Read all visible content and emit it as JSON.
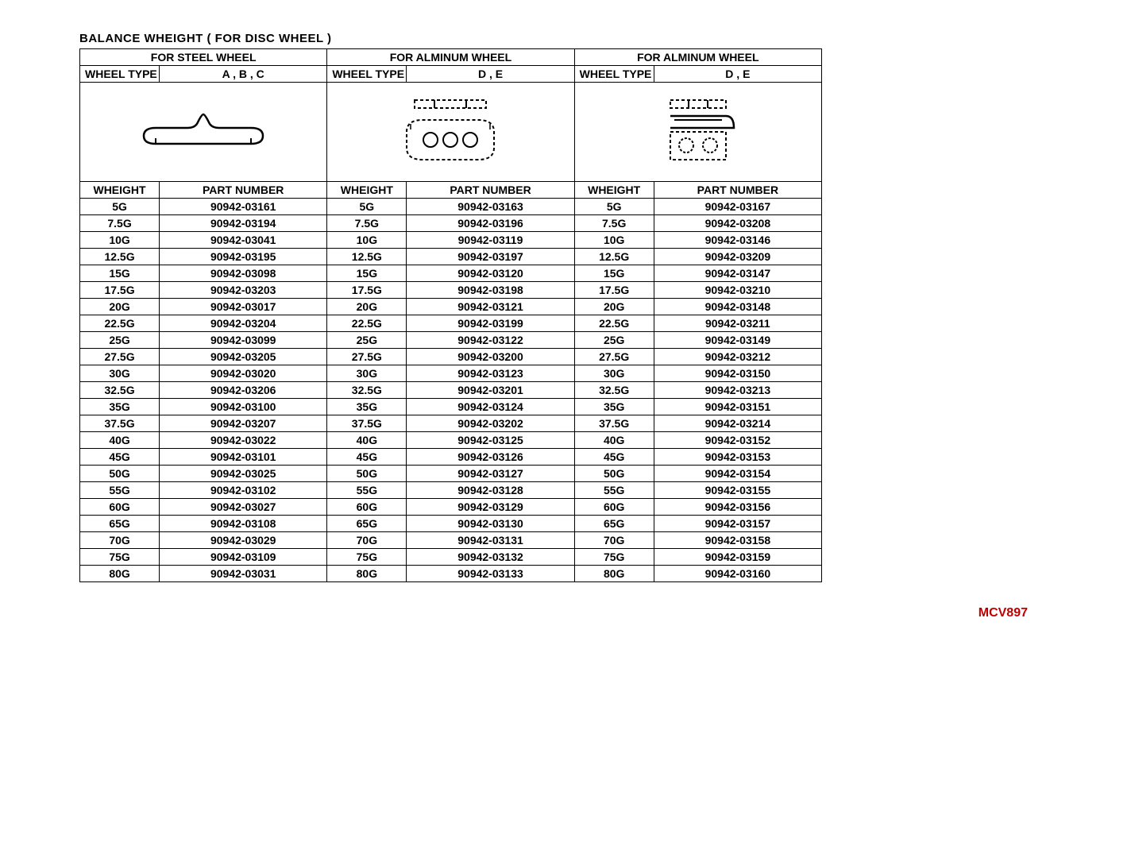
{
  "title": "BALANCE  WHEIGHT ( FOR  DISC  WHEEL )",
  "page_code": "MCV897",
  "groups": [
    {
      "title": "FOR STEEL WHEEL",
      "wheel_type_label": "WHEEL TYPE",
      "wheel_type_value": "A , B , C",
      "diagram": "steel"
    },
    {
      "title": "FOR ALMINUM WHEEL",
      "wheel_type_label": "WHEEL TYPE",
      "wheel_type_value": "D , E",
      "diagram": "alum1"
    },
    {
      "title": "FOR ALMINUM WHEEL",
      "wheel_type_label": "WHEEL TYPE",
      "wheel_type_value": "D , E",
      "diagram": "alum2"
    }
  ],
  "col_headers": {
    "weight": "WHEIGHT",
    "part": "PART  NUMBER"
  },
  "rows": [
    {
      "w": [
        "5G",
        "5G",
        "5G"
      ],
      "p": [
        "90942-03161",
        "90942-03163",
        "90942-03167"
      ]
    },
    {
      "w": [
        "7.5G",
        "7.5G",
        "7.5G"
      ],
      "p": [
        "90942-03194",
        "90942-03196",
        "90942-03208"
      ]
    },
    {
      "w": [
        "10G",
        "10G",
        "10G"
      ],
      "p": [
        "90942-03041",
        "90942-03119",
        "90942-03146"
      ]
    },
    {
      "w": [
        "12.5G",
        "12.5G",
        "12.5G"
      ],
      "p": [
        "90942-03195",
        "90942-03197",
        "90942-03209"
      ]
    },
    {
      "w": [
        "15G",
        "15G",
        "15G"
      ],
      "p": [
        "90942-03098",
        "90942-03120",
        "90942-03147"
      ]
    },
    {
      "w": [
        "17.5G",
        "17.5G",
        "17.5G"
      ],
      "p": [
        "90942-03203",
        "90942-03198",
        "90942-03210"
      ]
    },
    {
      "w": [
        "20G",
        "20G",
        "20G"
      ],
      "p": [
        "90942-03017",
        "90942-03121",
        "90942-03148"
      ]
    },
    {
      "w": [
        "22.5G",
        "22.5G",
        "22.5G"
      ],
      "p": [
        "90942-03204",
        "90942-03199",
        "90942-03211"
      ]
    },
    {
      "w": [
        "25G",
        "25G",
        "25G"
      ],
      "p": [
        "90942-03099",
        "90942-03122",
        "90942-03149"
      ]
    },
    {
      "w": [
        "27.5G",
        "27.5G",
        "27.5G"
      ],
      "p": [
        "90942-03205",
        "90942-03200",
        "90942-03212"
      ]
    },
    {
      "w": [
        "30G",
        "30G",
        "30G"
      ],
      "p": [
        "90942-03020",
        "90942-03123",
        "90942-03150"
      ]
    },
    {
      "w": [
        "32.5G",
        "32.5G",
        "32.5G"
      ],
      "p": [
        "90942-03206",
        "90942-03201",
        "90942-03213"
      ]
    },
    {
      "w": [
        "35G",
        "35G",
        "35G"
      ],
      "p": [
        "90942-03100",
        "90942-03124",
        "90942-03151"
      ]
    },
    {
      "w": [
        "37.5G",
        "37.5G",
        "37.5G"
      ],
      "p": [
        "90942-03207",
        "90942-03202",
        "90942-03214"
      ]
    },
    {
      "w": [
        "40G",
        "40G",
        "40G"
      ],
      "p": [
        "90942-03022",
        "90942-03125",
        "90942-03152"
      ]
    },
    {
      "w": [
        "45G",
        "45G",
        "45G"
      ],
      "p": [
        "90942-03101",
        "90942-03126",
        "90942-03153"
      ]
    },
    {
      "w": [
        "50G",
        "50G",
        "50G"
      ],
      "p": [
        "90942-03025",
        "90942-03127",
        "90942-03154"
      ]
    },
    {
      "w": [
        "55G",
        "55G",
        "55G"
      ],
      "p": [
        "90942-03102",
        "90942-03128",
        "90942-03155"
      ]
    },
    {
      "w": [
        "60G",
        "60G",
        "60G"
      ],
      "p": [
        "90942-03027",
        "90942-03129",
        "90942-03156"
      ]
    },
    {
      "w": [
        "65G",
        "65G",
        "65G"
      ],
      "p": [
        "90942-03108",
        "90942-03130",
        "90942-03157"
      ]
    },
    {
      "w": [
        "70G",
        "70G",
        "70G"
      ],
      "p": [
        "90942-03029",
        "90942-03131",
        "90942-03158"
      ]
    },
    {
      "w": [
        "75G",
        "75G",
        "75G"
      ],
      "p": [
        "90942-03109",
        "90942-03132",
        "90942-03159"
      ]
    },
    {
      "w": [
        "80G",
        "80G",
        "80G"
      ],
      "p": [
        "90942-03031",
        "90942-03133",
        "90942-03160"
      ]
    }
  ]
}
